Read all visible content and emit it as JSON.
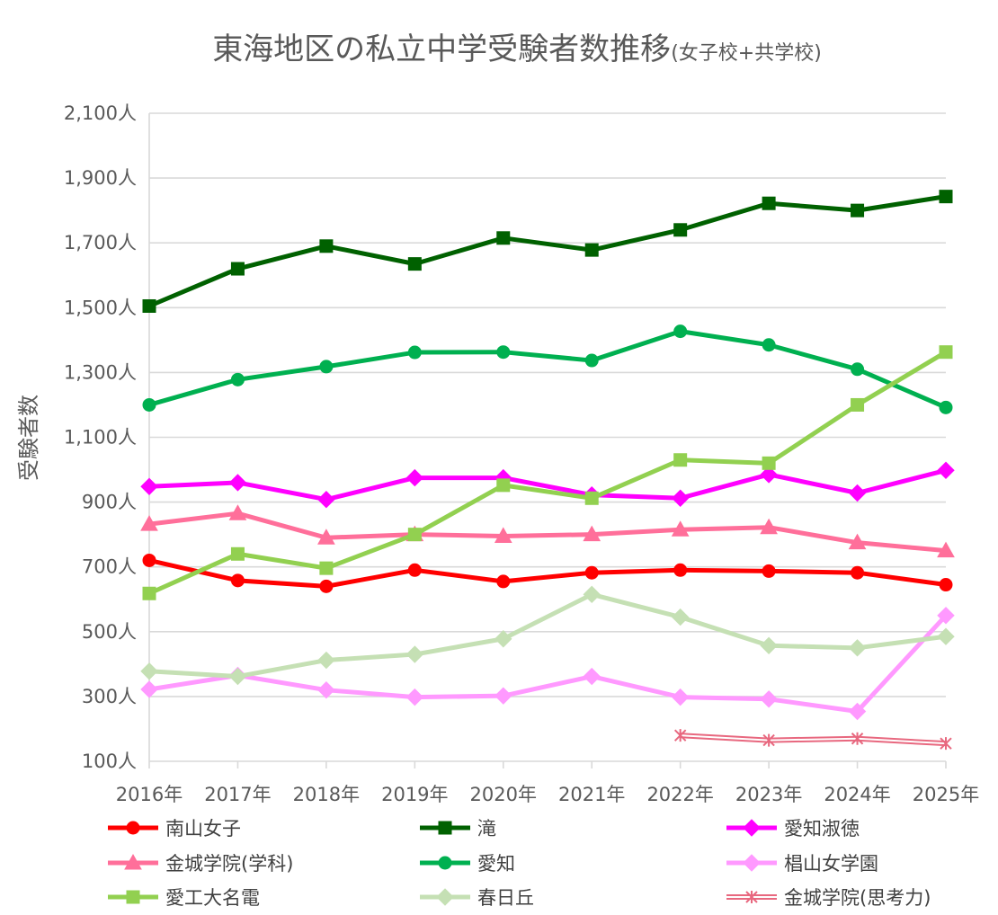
{
  "chart_data": {
    "type": "line",
    "title": "東海地区の私立中学受験者数推移",
    "subtitle": "(女子校+共学校)",
    "xlabel": "",
    "ylabel": "受験者数",
    "categories": [
      "2016年",
      "2017年",
      "2018年",
      "2019年",
      "2020年",
      "2021年",
      "2022年",
      "2023年",
      "2024年",
      "2025年"
    ],
    "ylim": [
      100,
      2100
    ],
    "ytick_values": [
      100,
      300,
      500,
      700,
      900,
      1100,
      1300,
      1500,
      1700,
      1900,
      2100
    ],
    "ytick_labels": [
      "100人",
      "300人",
      "500人",
      "700人",
      "900人",
      "1,100人",
      "1,300人",
      "1,500人",
      "1,700人",
      "1,900人",
      "2,100人"
    ],
    "grid": true,
    "legend_position": "bottom",
    "series": [
      {
        "name": "南山女子",
        "color": "#ff0000",
        "marker": "circle",
        "style": "solid",
        "values": [
          720,
          658,
          640,
          690,
          655,
          682,
          690,
          687,
          682,
          645
        ]
      },
      {
        "name": "滝",
        "color": "#006100",
        "marker": "square",
        "style": "solid",
        "values": [
          1505,
          1620,
          1690,
          1635,
          1715,
          1678,
          1740,
          1822,
          1800,
          1843
        ]
      },
      {
        "name": "愛知淑徳",
        "color": "#ff00ff",
        "marker": "diamond",
        "style": "solid",
        "values": [
          948,
          960,
          908,
          975,
          975,
          922,
          912,
          985,
          928,
          998
        ]
      },
      {
        "name": "金城学院(学科)",
        "color": "#ff6f9a",
        "marker": "triangle",
        "style": "solid",
        "values": [
          832,
          865,
          790,
          800,
          795,
          800,
          815,
          822,
          775,
          750
        ]
      },
      {
        "name": "愛知",
        "color": "#00b050",
        "marker": "circle",
        "style": "solid",
        "values": [
          1200,
          1278,
          1318,
          1362,
          1363,
          1337,
          1427,
          1385,
          1310,
          1192
        ]
      },
      {
        "name": "椙山女学園",
        "color": "#ff99ff",
        "marker": "diamond",
        "style": "solid",
        "values": [
          322,
          365,
          320,
          298,
          302,
          362,
          298,
          292,
          254,
          550
        ]
      },
      {
        "name": "愛工大名電",
        "color": "#92d050",
        "marker": "square",
        "style": "solid",
        "values": [
          618,
          740,
          696,
          800,
          952,
          912,
          1030,
          1020,
          1200,
          1363
        ]
      },
      {
        "name": "春日丘",
        "color": "#c5e0b4",
        "marker": "diamond",
        "style": "solid",
        "values": [
          378,
          362,
          412,
          430,
          478,
          615,
          545,
          457,
          450,
          485
        ]
      },
      {
        "name": "金城学院(思考力)",
        "color": "#e8687f",
        "marker": "star",
        "style": "double",
        "values": [
          null,
          null,
          null,
          null,
          null,
          null,
          180,
          165,
          170,
          155
        ]
      }
    ]
  }
}
